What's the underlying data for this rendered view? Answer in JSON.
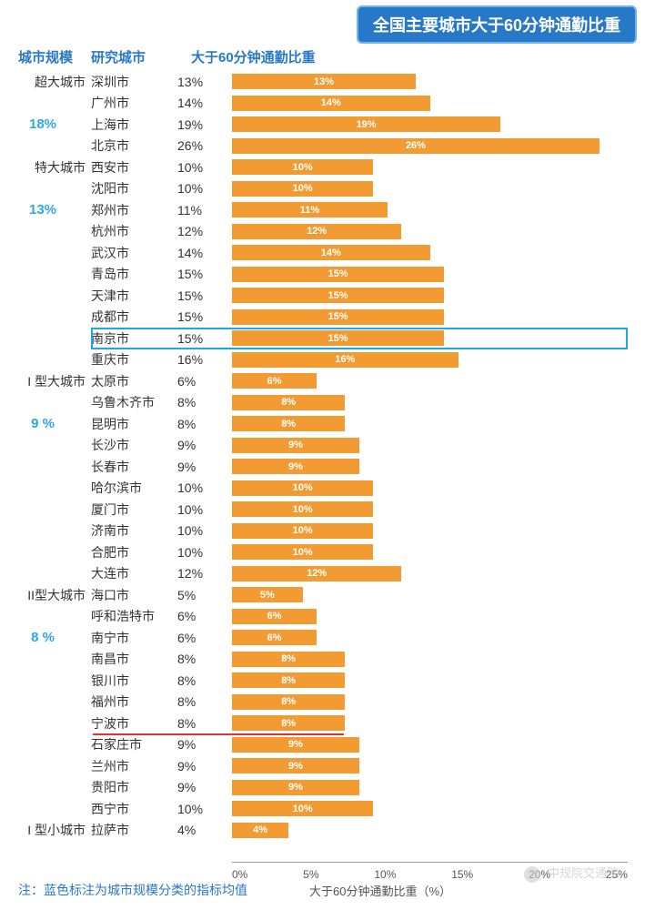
{
  "title": "全国主要城市大于60分钟通勤比重",
  "headers": {
    "scale": "城市规模",
    "city": "研究城市",
    "pct": "大于60分钟通勤比重"
  },
  "bar_color": "#f39b33",
  "bar_text_color": "#ffffff",
  "highlight_color": "#1fa6e6",
  "title_bg": "#2878c8",
  "avg_color": "#2da7e6",
  "red_line_color": "#d33",
  "x_max": 28,
  "x_ticks": [
    "0%",
    "5%",
    "10%",
    "15%",
    "20%",
    "25%"
  ],
  "axis_label": "大于60分钟通勤比重（%）",
  "footnote": "注：蓝色标注为城市规模分类的指标均值",
  "watermark": "中规院交通院",
  "highlight_row_index": 12,
  "red_line_after_index": 30,
  "groups": [
    {
      "label": "超大城市",
      "avg": "18%",
      "start": 0
    },
    {
      "label": "特大城市",
      "avg": "13%",
      "start": 4
    },
    {
      "label": "I 型大城市",
      "avg": "9 %",
      "start": 14
    },
    {
      "label": "II型大城市",
      "avg": "8 %",
      "start": 24
    },
    {
      "label": "I 型小城市",
      "avg": "",
      "start": 35
    }
  ],
  "rows": [
    {
      "city": "深圳市",
      "pct": 13
    },
    {
      "city": "广州市",
      "pct": 14
    },
    {
      "city": "上海市",
      "pct": 19
    },
    {
      "city": "北京市",
      "pct": 26
    },
    {
      "city": "西安市",
      "pct": 10
    },
    {
      "city": "沈阳市",
      "pct": 10
    },
    {
      "city": "郑州市",
      "pct": 11
    },
    {
      "city": "杭州市",
      "pct": 12
    },
    {
      "city": "武汉市",
      "pct": 14
    },
    {
      "city": "青岛市",
      "pct": 15
    },
    {
      "city": "天津市",
      "pct": 15
    },
    {
      "city": "成都市",
      "pct": 15
    },
    {
      "city": "南京市",
      "pct": 15
    },
    {
      "city": "重庆市",
      "pct": 16
    },
    {
      "city": "太原市",
      "pct": 6
    },
    {
      "city": "乌鲁木齐市",
      "pct": 8
    },
    {
      "city": "昆明市",
      "pct": 8
    },
    {
      "city": "长沙市",
      "pct": 9
    },
    {
      "city": "长春市",
      "pct": 9
    },
    {
      "city": "哈尔滨市",
      "pct": 10
    },
    {
      "city": "厦门市",
      "pct": 10
    },
    {
      "city": "济南市",
      "pct": 10
    },
    {
      "city": "合肥市",
      "pct": 10
    },
    {
      "city": "大连市",
      "pct": 12
    },
    {
      "city": "海口市",
      "pct": 5
    },
    {
      "city": "呼和浩特市",
      "pct": 6
    },
    {
      "city": "南宁市",
      "pct": 6
    },
    {
      "city": "南昌市",
      "pct": 8
    },
    {
      "city": "银川市",
      "pct": 8
    },
    {
      "city": "福州市",
      "pct": 8
    },
    {
      "city": "宁波市",
      "pct": 8
    },
    {
      "city": "石家庄市",
      "pct": 9
    },
    {
      "city": "兰州市",
      "pct": 9
    },
    {
      "city": "贵阳市",
      "pct": 9
    },
    {
      "city": "西宁市",
      "pct": 10
    },
    {
      "city": "拉萨市",
      "pct": 4
    }
  ]
}
